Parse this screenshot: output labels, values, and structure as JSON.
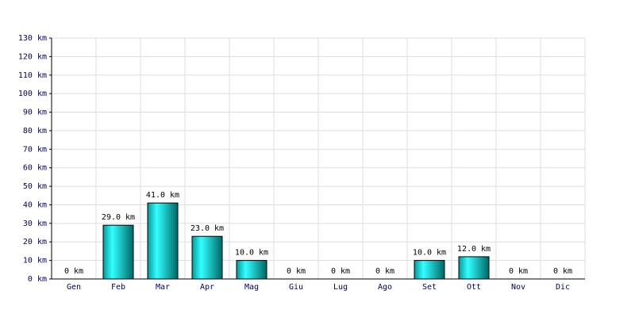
{
  "chart_data": {
    "type": "bar",
    "categories": [
      "Gen",
      "Feb",
      "Mar",
      "Apr",
      "Mag",
      "Giu",
      "Lug",
      "Ago",
      "Set",
      "Ott",
      "Nov",
      "Dic"
    ],
    "values": [
      0,
      29,
      41,
      23,
      10,
      0,
      0,
      0,
      10,
      12,
      0,
      0
    ],
    "value_labels": [
      "0 km",
      "29.0 km",
      "41.0 km",
      "23.0 km",
      "10.0 km",
      "0 km",
      "0 km",
      "0 km",
      "10.0 km",
      "12.0 km",
      "0 km",
      "0 km"
    ],
    "color": "#00cccc",
    "ylim": [
      0,
      130
    ],
    "yticks": [
      {
        "value": 0,
        "label": "0 km"
      },
      {
        "value": 10,
        "label": "10 km"
      },
      {
        "value": 20,
        "label": "20 km"
      },
      {
        "value": 30,
        "label": "30 km"
      },
      {
        "value": 40,
        "label": "40 km"
      },
      {
        "value": 50,
        "label": "50 km"
      },
      {
        "value": 60,
        "label": "60 km"
      },
      {
        "value": 70,
        "label": "70 km"
      },
      {
        "value": 80,
        "label": "80 km"
      },
      {
        "value": 90,
        "label": "90 km"
      },
      {
        "value": 100,
        "label": "100 km"
      },
      {
        "value": 110,
        "label": "110 km"
      },
      {
        "value": 120,
        "label": "120 km"
      },
      {
        "value": 130,
        "label": "130 km"
      }
    ],
    "grid": true
  }
}
